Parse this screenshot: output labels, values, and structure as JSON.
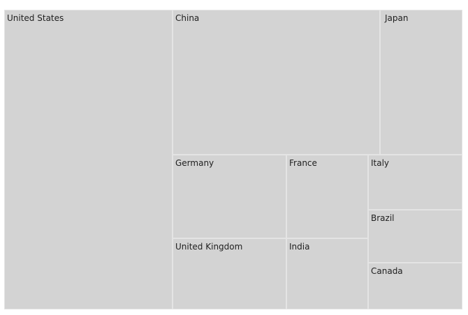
{
  "chart_data": {
    "type": "treemap",
    "items": [
      {
        "name": "United States",
        "color": "#d3d3d3"
      },
      {
        "name": "China",
        "color": "#d3d3d3"
      },
      {
        "name": "Japan",
        "color": "#d3d3d3"
      },
      {
        "name": "Germany",
        "color": "#d3d3d3"
      },
      {
        "name": "France",
        "color": "#d3d3d3"
      },
      {
        "name": "Italy",
        "color": "#d3d3d3"
      },
      {
        "name": "Brazil",
        "color": "#d3d3d3"
      },
      {
        "name": "United Kingdom",
        "color": "#d3d3d3"
      },
      {
        "name": "India",
        "color": "#d3d3d3"
      },
      {
        "name": "Canada",
        "color": "#d3d3d3"
      }
    ]
  }
}
